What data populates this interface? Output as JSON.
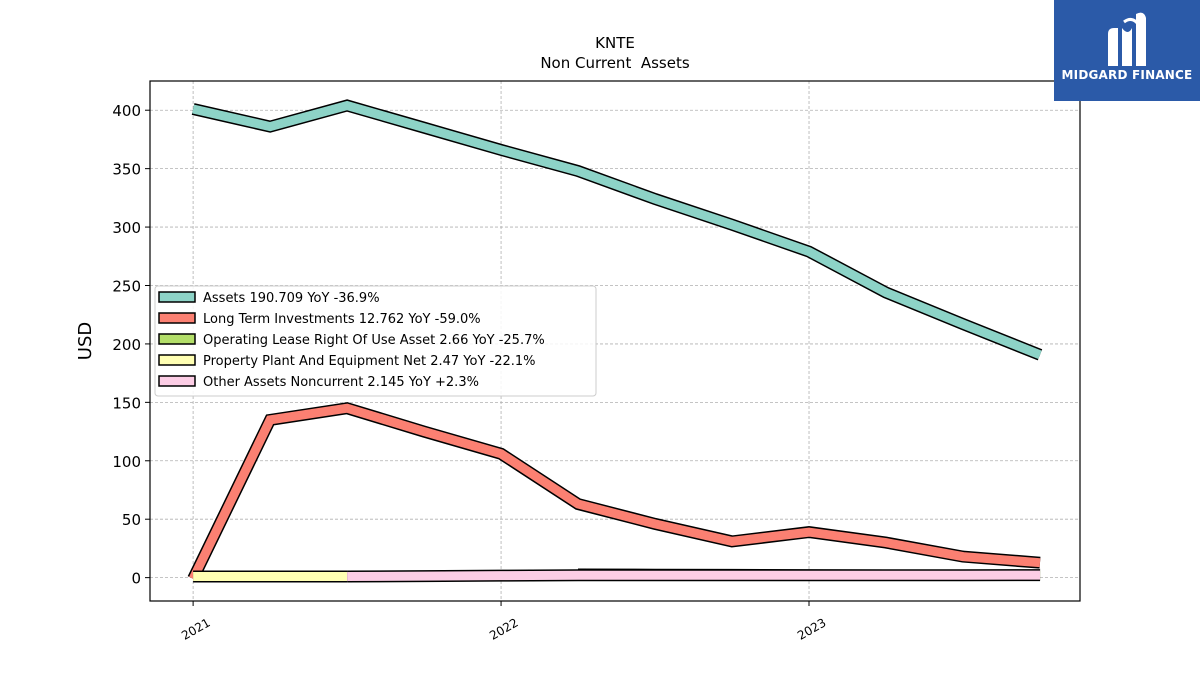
{
  "chart_data": {
    "type": "area",
    "title": "KNTE",
    "subtitle": "Non Current  Assets",
    "ylabel": "USD",
    "xlabel": "",
    "ylim": [
      -20,
      425
    ],
    "xlim": [
      2020.86,
      2023.88
    ],
    "yticks": [
      0,
      50,
      100,
      150,
      200,
      250,
      300,
      350,
      400
    ],
    "xticks": [
      {
        "value": 2021.0,
        "label": "2021"
      },
      {
        "value": 2022.0,
        "label": "2022"
      },
      {
        "value": 2023.0,
        "label": "2023"
      }
    ],
    "grid": true,
    "legend_position": "center-left",
    "x": [
      2021.0,
      2021.25,
      2021.5,
      2021.75,
      2022.0,
      2022.25,
      2022.5,
      2022.75,
      2023.0,
      2023.25,
      2023.5,
      2023.75
    ],
    "series": [
      {
        "name": "Assets",
        "legend": "Assets  190.709 YoY -36.9%",
        "color": "#8dd3c7",
        "values": [
          401,
          386,
          404,
          385,
          366,
          348,
          324,
          302,
          279,
          244,
          217,
          190.709
        ]
      },
      {
        "name": "Long Term Investments",
        "legend": "Long Term Investments  12.762 YoY -59.0%",
        "color": "#fb8072",
        "values": [
          -1,
          135,
          145,
          125,
          106,
          63,
          46,
          31,
          39,
          30,
          18,
          12.762
        ]
      },
      {
        "name": "Operating Lease Right Of Use Asset",
        "legend": "Operating Lease Right Of Use Asset  2.66 YoY -25.7%",
        "color": "#b3de69",
        "values": [
          null,
          null,
          null,
          null,
          null,
          4.0,
          3.8,
          3.6,
          3.4,
          3.1,
          2.9,
          2.66
        ]
      },
      {
        "name": "Property Plant And Equipment Net",
        "legend": "Property Plant And Equipment Net  2.47 YoY -22.1%",
        "color": "#ffffb3",
        "values": [
          1.0,
          1.0,
          1.0,
          null,
          null,
          null,
          null,
          null,
          null,
          null,
          null,
          2.47
        ]
      },
      {
        "name": "Other Assets Noncurrent",
        "legend": "Other Assets Noncurrent  2.145 YoY +2.3%",
        "color": "#fccde5",
        "values": [
          null,
          null,
          1.0,
          1.3,
          1.7,
          2.0,
          2.1,
          2.1,
          2.1,
          2.1,
          2.1,
          2.145
        ]
      }
    ]
  },
  "logo": {
    "text": "MIDGARD FINANCE",
    "background": "#2b5aa8"
  }
}
